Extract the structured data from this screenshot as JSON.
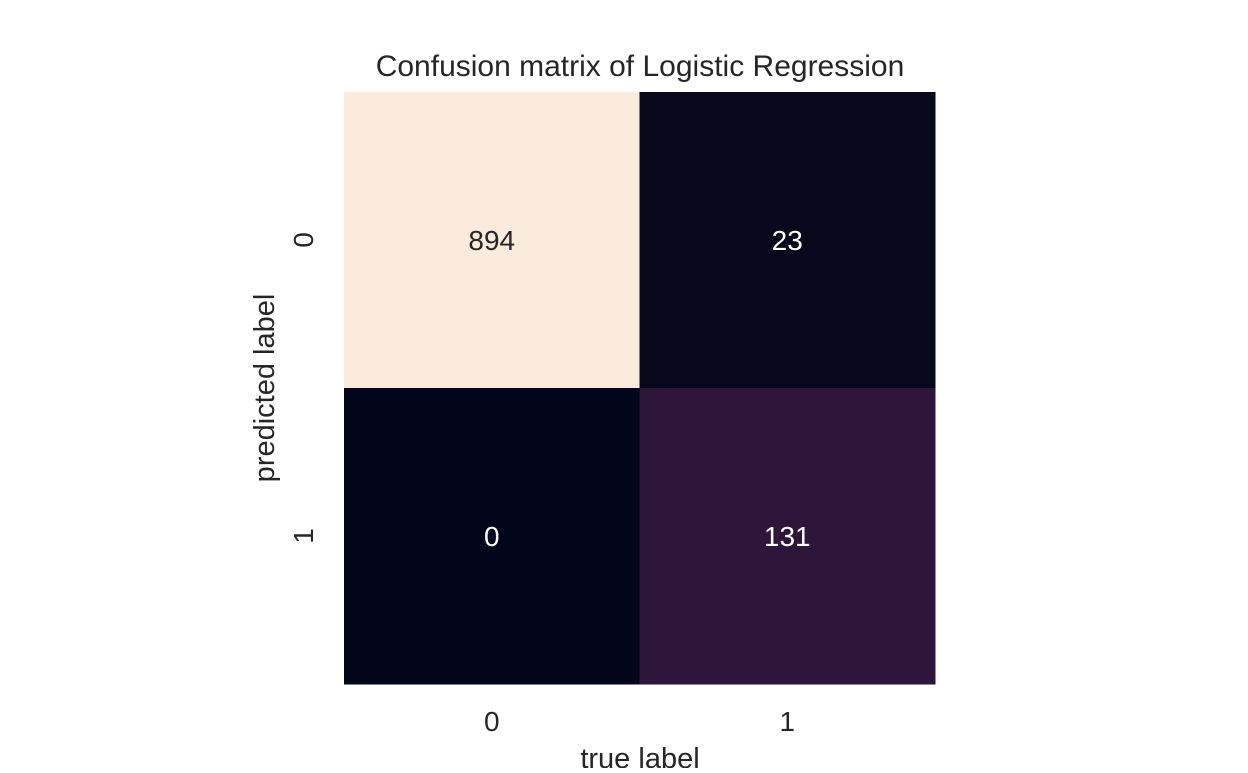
{
  "chart_data": {
    "type": "heatmap",
    "title": "Confusion matrix of Logistic Regression",
    "xlabel": "true label",
    "ylabel": "predicted label",
    "x_categories": [
      "0",
      "1"
    ],
    "y_categories": [
      "0",
      "1"
    ],
    "values": [
      [
        894,
        23
      ],
      [
        0,
        131
      ]
    ],
    "value_range": [
      0,
      894
    ],
    "colormap": "rocket",
    "colorbar": false,
    "grid": false,
    "colors": {
      "low": "#03051a",
      "high": "#faebdd",
      "text_dark": "#262626",
      "text_light": "#ffffff"
    }
  }
}
